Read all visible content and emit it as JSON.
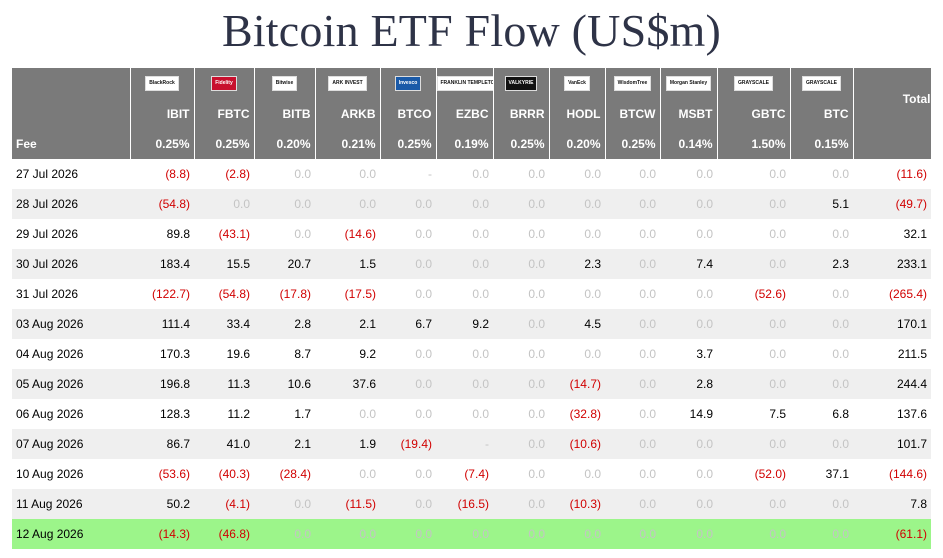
{
  "title": "Bitcoin ETF Flow (US$m)",
  "columns": [
    {
      "logo": "BlackRock",
      "logo_style": "plain",
      "ticker": "IBIT",
      "fee": "0.25%"
    },
    {
      "logo": "Fidelity",
      "logo_style": "red",
      "ticker": "FBTC",
      "fee": "0.25%"
    },
    {
      "logo": "Bitwise",
      "logo_style": "plain",
      "ticker": "BITB",
      "fee": "0.20%"
    },
    {
      "logo": "ARK INVEST",
      "logo_style": "plain",
      "ticker": "ARKB",
      "fee": "0.21%"
    },
    {
      "logo": "Invesco",
      "logo_style": "blue",
      "ticker": "BTCO",
      "fee": "0.25%"
    },
    {
      "logo": "FRANKLIN TEMPLETON",
      "logo_style": "plain",
      "ticker": "EZBC",
      "fee": "0.19%"
    },
    {
      "logo": "VALKYRIE",
      "logo_style": "dark",
      "ticker": "BRRR",
      "fee": "0.25%"
    },
    {
      "logo": "VanEck",
      "logo_style": "plain",
      "ticker": "HODL",
      "fee": "0.20%"
    },
    {
      "logo": "WisdomTree",
      "logo_style": "plain",
      "ticker": "BTCW",
      "fee": "0.25%"
    },
    {
      "logo": "Morgan Stanley",
      "logo_style": "plain",
      "ticker": "MSBT",
      "fee": "0.14%"
    },
    {
      "logo": "GRAYSCALE",
      "logo_style": "plain",
      "ticker": "GBTC",
      "fee": "1.50%"
    },
    {
      "logo": "GRAYSCALE",
      "logo_style": "plain",
      "ticker": "BTC",
      "fee": "0.15%"
    }
  ],
  "total_label": "Total",
  "fee_label": "Fee",
  "rows": [
    {
      "date": "27 Jul 2026",
      "values": [
        "(8.8)",
        "(2.8)",
        "0.0",
        "0.0",
        "-",
        "0.0",
        "0.0",
        "0.0",
        "0.0",
        "0.0",
        "0.0",
        "0.0"
      ],
      "total": "(11.6)"
    },
    {
      "date": "28 Jul 2026",
      "values": [
        "(54.8)",
        "0.0",
        "0.0",
        "0.0",
        "0.0",
        "0.0",
        "0.0",
        "0.0",
        "0.0",
        "0.0",
        "0.0",
        "5.1"
      ],
      "total": "(49.7)"
    },
    {
      "date": "29 Jul 2026",
      "values": [
        "89.8",
        "(43.1)",
        "0.0",
        "(14.6)",
        "0.0",
        "0.0",
        "0.0",
        "0.0",
        "0.0",
        "0.0",
        "0.0",
        "0.0"
      ],
      "total": "32.1"
    },
    {
      "date": "30 Jul 2026",
      "values": [
        "183.4",
        "15.5",
        "20.7",
        "1.5",
        "0.0",
        "0.0",
        "0.0",
        "2.3",
        "0.0",
        "7.4",
        "0.0",
        "2.3"
      ],
      "total": "233.1"
    },
    {
      "date": "31 Jul 2026",
      "values": [
        "(122.7)",
        "(54.8)",
        "(17.8)",
        "(17.5)",
        "0.0",
        "0.0",
        "0.0",
        "0.0",
        "0.0",
        "0.0",
        "(52.6)",
        "0.0"
      ],
      "total": "(265.4)"
    },
    {
      "date": "03 Aug 2026",
      "values": [
        "111.4",
        "33.4",
        "2.8",
        "2.1",
        "6.7",
        "9.2",
        "0.0",
        "4.5",
        "0.0",
        "0.0",
        "0.0",
        "0.0"
      ],
      "total": "170.1"
    },
    {
      "date": "04 Aug 2026",
      "values": [
        "170.3",
        "19.6",
        "8.7",
        "9.2",
        "0.0",
        "0.0",
        "0.0",
        "0.0",
        "0.0",
        "3.7",
        "0.0",
        "0.0"
      ],
      "total": "211.5"
    },
    {
      "date": "05 Aug 2026",
      "values": [
        "196.8",
        "11.3",
        "10.6",
        "37.6",
        "0.0",
        "0.0",
        "0.0",
        "(14.7)",
        "0.0",
        "2.8",
        "0.0",
        "0.0"
      ],
      "total": "244.4"
    },
    {
      "date": "06 Aug 2026",
      "values": [
        "128.3",
        "11.2",
        "1.7",
        "0.0",
        "0.0",
        "0.0",
        "0.0",
        "(32.8)",
        "0.0",
        "14.9",
        "7.5",
        "6.8"
      ],
      "total": "137.6"
    },
    {
      "date": "07 Aug 2026",
      "values": [
        "86.7",
        "41.0",
        "2.1",
        "1.9",
        "(19.4)",
        "-",
        "0.0",
        "(10.6)",
        "0.0",
        "0.0",
        "0.0",
        "0.0"
      ],
      "total": "101.7"
    },
    {
      "date": "10 Aug 2026",
      "values": [
        "(53.6)",
        "(40.3)",
        "(28.4)",
        "0.0",
        "0.0",
        "(7.4)",
        "0.0",
        "0.0",
        "0.0",
        "0.0",
        "(52.0)",
        "37.1"
      ],
      "total": "(144.6)"
    },
    {
      "date": "11 Aug 2026",
      "values": [
        "50.2",
        "(4.1)",
        "0.0",
        "(11.5)",
        "0.0",
        "(16.5)",
        "0.0",
        "(10.3)",
        "0.0",
        "0.0",
        "0.0",
        "0.0"
      ],
      "total": "7.8"
    },
    {
      "date": "12 Aug 2026",
      "values": [
        "(14.3)",
        "(46.8)",
        "0.0",
        "0.0",
        "0.0",
        "0.0",
        "0.0",
        "0.0",
        "0.0",
        "0.0",
        "0.0",
        "0.0"
      ],
      "total": "(61.1)",
      "highlight": true
    }
  ],
  "colors": {
    "header_bg": "#7a7a7a",
    "negative": "#d10000",
    "zero": "#c4c4c4",
    "highlight": "#9cf58a",
    "title": "#2e3347",
    "stripe": "#efefef"
  }
}
